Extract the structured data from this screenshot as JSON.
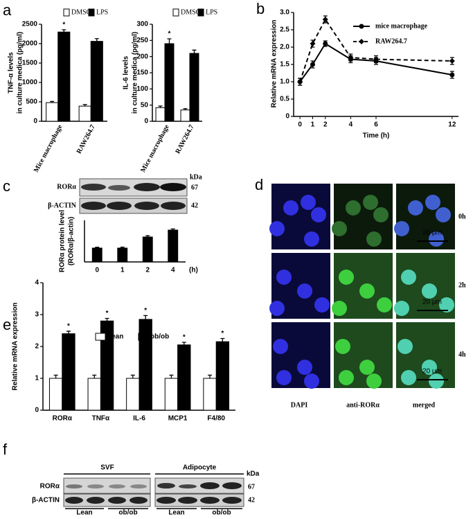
{
  "panel_letters": [
    "a",
    "b",
    "c",
    "d",
    "e",
    "f"
  ],
  "chart_data": [
    {
      "type": "bar",
      "ylabel": [
        "TNF-α levels",
        "in culture medica (pg/ml)"
      ],
      "categories": [
        "Mice macrophage",
        "RAW264.7"
      ],
      "series": [
        {
          "name": "DMSO",
          "color": "#ffffff",
          "values": [
            480,
            390
          ],
          "errors": [
            30,
            40
          ]
        },
        {
          "name": "LPS",
          "color": "#000000",
          "values": [
            2300,
            2060
          ],
          "errors": [
            60,
            70
          ],
          "labels": [
            "*",
            null
          ]
        }
      ],
      "ylim": [
        0,
        2500
      ],
      "yticks": [
        0,
        500,
        1000,
        1500,
        2000,
        2500
      ]
    },
    {
      "type": "bar",
      "ylabel": [
        "IL-6 levels",
        "in culture medica (pg/ml)"
      ],
      "categories": [
        "Mice macrophage",
        "RAW264.7"
      ],
      "series": [
        {
          "name": "DMSO",
          "color": "#ffffff",
          "values": [
            42,
            35
          ],
          "errors": [
            5,
            4
          ]
        },
        {
          "name": "LPS",
          "color": "#000000",
          "values": [
            240,
            210
          ],
          "errors": [
            15,
            10
          ],
          "labels": [
            "*",
            null
          ]
        }
      ],
      "ylim": [
        0,
        300
      ],
      "yticks": [
        0,
        50,
        100,
        150,
        200,
        250,
        300
      ]
    },
    {
      "type": "line",
      "ylabel": [
        "Relative mRNA expression"
      ],
      "xlabel": "Time (h)",
      "x": [
        0,
        1,
        2,
        4,
        6,
        12
      ],
      "series": [
        {
          "name": "mice macrophage",
          "color": "#000000",
          "line_style": "solid",
          "marker": "circle",
          "values": [
            1.0,
            1.5,
            2.1,
            1.65,
            1.6,
            1.2
          ],
          "errors": [
            0.1,
            0.1,
            0.08,
            0.1,
            0.1,
            0.1
          ]
        },
        {
          "name": "RAW264.7",
          "color": "#000000",
          "line_style": "dashed",
          "marker": "diamond",
          "values": [
            1.0,
            2.1,
            2.8,
            1.7,
            1.65,
            1.6
          ],
          "errors": [
            0.1,
            0.1,
            0.1,
            0.1,
            0.1,
            0.1
          ]
        }
      ],
      "xlim": [
        -0.5,
        12.5
      ],
      "xticks": [
        0,
        1,
        2,
        4,
        6,
        12
      ],
      "ylim": [
        0,
        3
      ],
      "yticks": [
        0,
        {
          "value": 0.5,
          "label": "0.5"
        },
        {
          "value": 1,
          "label": "1.0"
        },
        {
          "value": 1.5,
          "label": "1.5"
        },
        {
          "value": 2,
          "label": "2.0"
        },
        {
          "value": 2.5,
          "label": "2.5"
        },
        {
          "value": 3,
          "label": "3.0"
        }
      ]
    },
    {
      "type": "bar",
      "ylabel": [
        "RORα protein level",
        "(RORα/β-actin)"
      ],
      "categories": [
        "0",
        "1",
        "2",
        "4"
      ],
      "xunit": "(h)",
      "series": [
        {
          "name": null,
          "color": "#000000",
          "values": [
            1.0,
            1.0,
            1.8,
            2.3
          ],
          "errors": [
            0.06,
            0.07,
            0.09,
            0.08
          ]
        }
      ],
      "ylim": [
        0,
        3
      ]
    },
    {
      "type": "bar",
      "ylabel": [
        "Relative mRNA expression"
      ],
      "categories": [
        "RORα",
        "TNFα",
        "IL-6",
        "MCP1",
        "F4/80"
      ],
      "series": [
        {
          "name": "Lean",
          "color": "#ffffff",
          "values": [
            1,
            1,
            1,
            1,
            1
          ],
          "errors": [
            0.1,
            0.1,
            0.1,
            0.1,
            0.1
          ]
        },
        {
          "name": "ob/ob",
          "color": "#000000",
          "values": [
            2.4,
            2.8,
            2.85,
            2.05,
            2.15
          ],
          "errors": [
            0.08,
            0.08,
            0.12,
            0.08,
            0.1
          ],
          "labels": [
            "*",
            "*",
            "*",
            "*",
            "*"
          ]
        }
      ],
      "ylim": [
        0,
        4
      ],
      "yticks": [
        0,
        1,
        2,
        3,
        4
      ]
    }
  ],
  "blot_c": {
    "rows": [
      "RORα",
      "β-ACTIN"
    ],
    "kda_header": "kDa",
    "kda": [
      "67",
      "42"
    ]
  },
  "micro_d": {
    "columns": [
      "DAPI",
      "anti-RORα",
      "merged"
    ],
    "rows": [
      "0h",
      "2h",
      "4h"
    ],
    "scale_bar": "20 μm"
  },
  "blot_f": {
    "groups": [
      "SVF",
      "Adipocyte"
    ],
    "rows": [
      "RORα",
      "β-ACTIN"
    ],
    "kda_header": "kDa",
    "kda": [
      "67",
      "42"
    ],
    "lanes": [
      "Lean",
      "ob/ob",
      "Lean",
      "ob/ob"
    ]
  }
}
